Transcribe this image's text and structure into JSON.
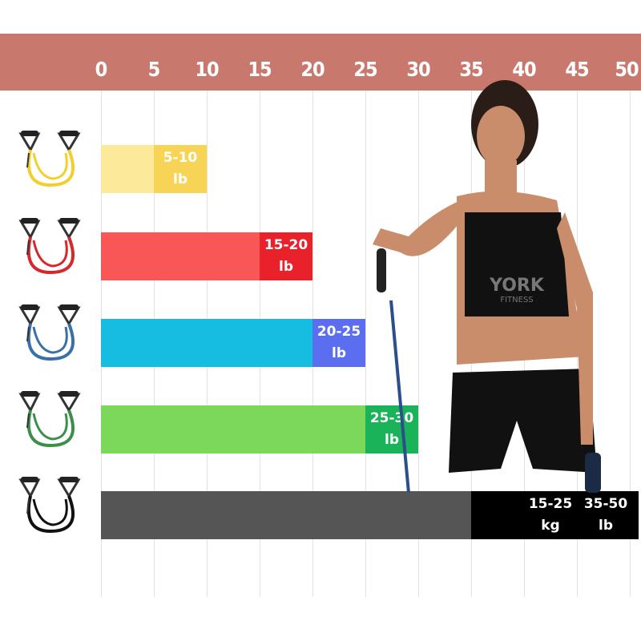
{
  "chart_data": {
    "type": "bar",
    "orientation": "horizontal",
    "x_ticks": [
      0,
      5,
      10,
      15,
      20,
      25,
      30,
      35,
      40,
      45,
      50
    ],
    "xlim": [
      0,
      50
    ],
    "axis_position": "top",
    "grid": true,
    "bars": [
      {
        "band_color": "yellow",
        "range": [
          5,
          10
        ],
        "label_lines": [
          "5-10",
          "lb"
        ],
        "light": "#fde99a",
        "dark": "#f8d456"
      },
      {
        "band_color": "red",
        "range": [
          15,
          20
        ],
        "label_lines": [
          "15-20",
          "lb"
        ],
        "light": "#f95757",
        "dark": "#e8212b"
      },
      {
        "band_color": "blue",
        "range": [
          20,
          25
        ],
        "label_lines": [
          "20-25",
          "lb"
        ],
        "light": "#16bde0",
        "dark": "#5b6ef0"
      },
      {
        "band_color": "green",
        "range": [
          25,
          30
        ],
        "label_lines": [
          "25-30",
          "lb"
        ],
        "light": "#7cd85a",
        "dark": "#1bb35a"
      },
      {
        "band_color": "black",
        "range": [
          35,
          50
        ],
        "label_lines": [
          "15-25",
          "kg"
        ],
        "label2_lines": [
          "35-50",
          "lb"
        ],
        "light": "#555555",
        "dark": "#000000"
      }
    ]
  },
  "colors": {
    "header": "#c9786e"
  },
  "photo": {
    "shirt_text": [
      "YORK",
      "FITNESS"
    ]
  }
}
